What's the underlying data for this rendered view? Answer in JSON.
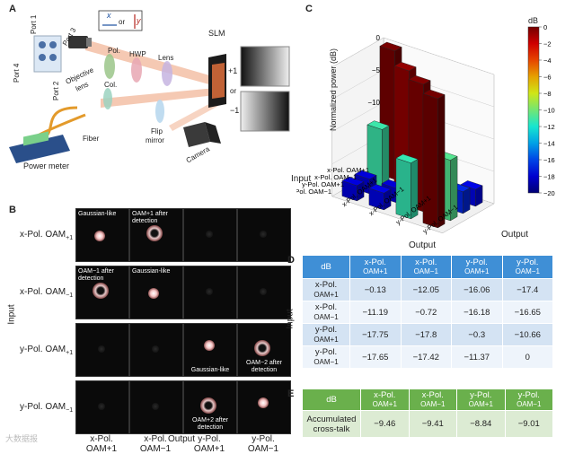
{
  "panels": {
    "a": "A",
    "b": "B",
    "c": "C",
    "d": "D",
    "e": "E"
  },
  "setup": {
    "port1": "Port 1",
    "port2": "Port 2",
    "port3": "Port 3",
    "port4": "Port 4",
    "objective": "Objective",
    "lens_word": "lens",
    "pol": "Pol.",
    "hwp": "HWP",
    "lens": "Lens",
    "slm": "SLM",
    "col": "Col.",
    "flip": "Flip",
    "mirror": "mirror",
    "camera": "Camera",
    "fiber": "Fiber",
    "power_meter": "Power meter",
    "legend_x": "x",
    "legend_or": "or",
    "legend_y": "y",
    "plus1": "+1",
    "or": "or",
    "minus1": "−1"
  },
  "panel_b": {
    "rows": [
      "x-Pol. OAM+1",
      "x-Pol. OAM−1",
      "y-Pol. OAM+1",
      "y-Pol. OAM−1"
    ],
    "row_main": [
      "x-Pol. OAM",
      "x-Pol. OAM",
      "y-Pol. OAM",
      "y-Pol. OAM"
    ],
    "row_sub": [
      "+1",
      "−1",
      "+1",
      "−1"
    ],
    "cols_top": [
      "x-Pol.",
      "x-Pol.",
      "y-Pol.",
      "y-Pol."
    ],
    "cols_bottom": [
      "OAM+1",
      "OAM−1",
      "OAM+1",
      "OAM−1"
    ],
    "axis_input": "Input",
    "axis_output": "Output",
    "captions": {
      "gaussian": "Gaussian-like",
      "oam_p1_after": "OAM+1 after detection",
      "oam_m1_after": "OAM−1 after detection",
      "oam_p2_after": "OAM+2 after detection",
      "oam_m2_after": "OAM−2 after detection"
    }
  },
  "chart_data": {
    "type": "bar3d",
    "zlabel": "Normalized power (dB)",
    "xlabel": "Input",
    "ylabel": "Output",
    "colorbar_label": "dB",
    "colorbar_ticks": [
      0,
      -2,
      -4,
      -6,
      -8,
      -10,
      -12,
      -14,
      -16,
      -18,
      -20
    ],
    "z_ticks": [
      0,
      -5,
      -10,
      -15,
      -20
    ],
    "zlim": [
      -20,
      0
    ],
    "input_labels": [
      "x-Pol. OAM+1",
      "x-Pol. OAM−1",
      "y-Pol. OAM+1",
      "y-Pol. OAM−1"
    ],
    "output_labels": [
      "x-Pol. OAM+1",
      "x-Pol. OAM−1",
      "y-Pol. OAM+1",
      "y-Pol. OAM−1"
    ],
    "values": [
      [
        -0.13,
        -12.05,
        -16.06,
        -17.4
      ],
      [
        -11.19,
        -0.72,
        -16.18,
        -16.65
      ],
      [
        -17.75,
        -17.8,
        -0.3,
        -10.66
      ],
      [
        -17.65,
        -17.42,
        -11.37,
        0
      ]
    ]
  },
  "table_d": {
    "corner": "dB",
    "output_title": "Output",
    "input_title": "Input",
    "col_top": [
      "x-Pol.",
      "x-Pol.",
      "y-Pol.",
      "y-Pol."
    ],
    "col_bottom": [
      "OAM+1",
      "OAM−1",
      "OAM+1",
      "OAM−1"
    ],
    "row_top": [
      "x-Pol.",
      "x-Pol.",
      "y-Pol.",
      "y-Pol."
    ],
    "row_bottom": [
      "OAM+1",
      "OAM−1",
      "OAM+1",
      "OAM−1"
    ],
    "cells": [
      [
        "−0.13",
        "−12.05",
        "−16.06",
        "−17.4"
      ],
      [
        "−11.19",
        "−0.72",
        "−16.18",
        "−16.65"
      ],
      [
        "−17.75",
        "−17.8",
        "−0.3",
        "−10.66"
      ],
      [
        "−17.65",
        "−17.42",
        "−11.37",
        "0"
      ]
    ]
  },
  "table_e": {
    "corner": "dB",
    "col_top": [
      "x-Pol.",
      "x-Pol.",
      "y-Pol.",
      "y-Pol."
    ],
    "col_bottom": [
      "OAM+1",
      "OAM−1",
      "OAM+1",
      "OAM−1"
    ],
    "row_label_1": "Accumulated",
    "row_label_2": "cross-talk",
    "cells": [
      "−9.46",
      "−9.41",
      "−8.84",
      "−9.01"
    ]
  },
  "watermark": "大数据报"
}
